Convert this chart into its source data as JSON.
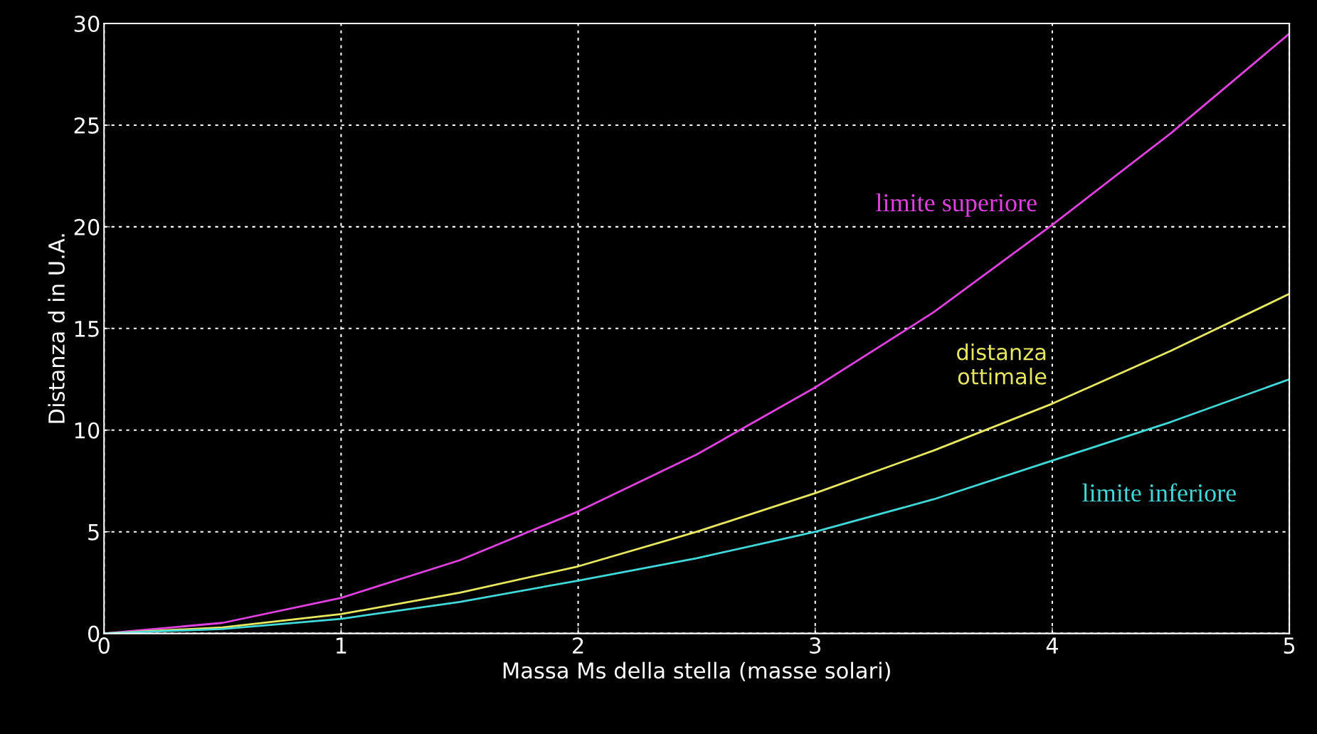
{
  "chart_data": {
    "type": "line",
    "xlabel": "Massa Ms della stella (masse solari)",
    "ylabel": "Distanza d in U.A.",
    "x": [
      0,
      0.5,
      1,
      1.5,
      2,
      2.5,
      3,
      3.5,
      4,
      4.5,
      5
    ],
    "series": [
      {
        "name": "limite superiore",
        "color": "#e040e0",
        "values": [
          0,
          0.52,
          1.75,
          3.6,
          6.0,
          8.8,
          12.1,
          15.8,
          20.1,
          24.6,
          29.5
        ]
      },
      {
        "name": "distanza\nottimale",
        "color": "#e8e860",
        "values": [
          0,
          0.3,
          0.95,
          2.0,
          3.3,
          5.0,
          6.9,
          9.0,
          11.3,
          13.9,
          16.7
        ]
      },
      {
        "name": "limite inferiore",
        "color": "#40d8d8",
        "values": [
          0,
          0.22,
          0.72,
          1.55,
          2.6,
          3.7,
          5.0,
          6.6,
          8.5,
          10.4,
          12.5
        ]
      }
    ],
    "xlim": [
      0,
      5
    ],
    "ylim": [
      0,
      30
    ],
    "xticks": [
      0,
      1,
      2,
      3,
      4,
      5
    ],
    "yticks": [
      0,
      5,
      10,
      15,
      20,
      25,
      30
    ],
    "grid": true,
    "legend": false,
    "marker": "none",
    "line_style": "solid"
  }
}
